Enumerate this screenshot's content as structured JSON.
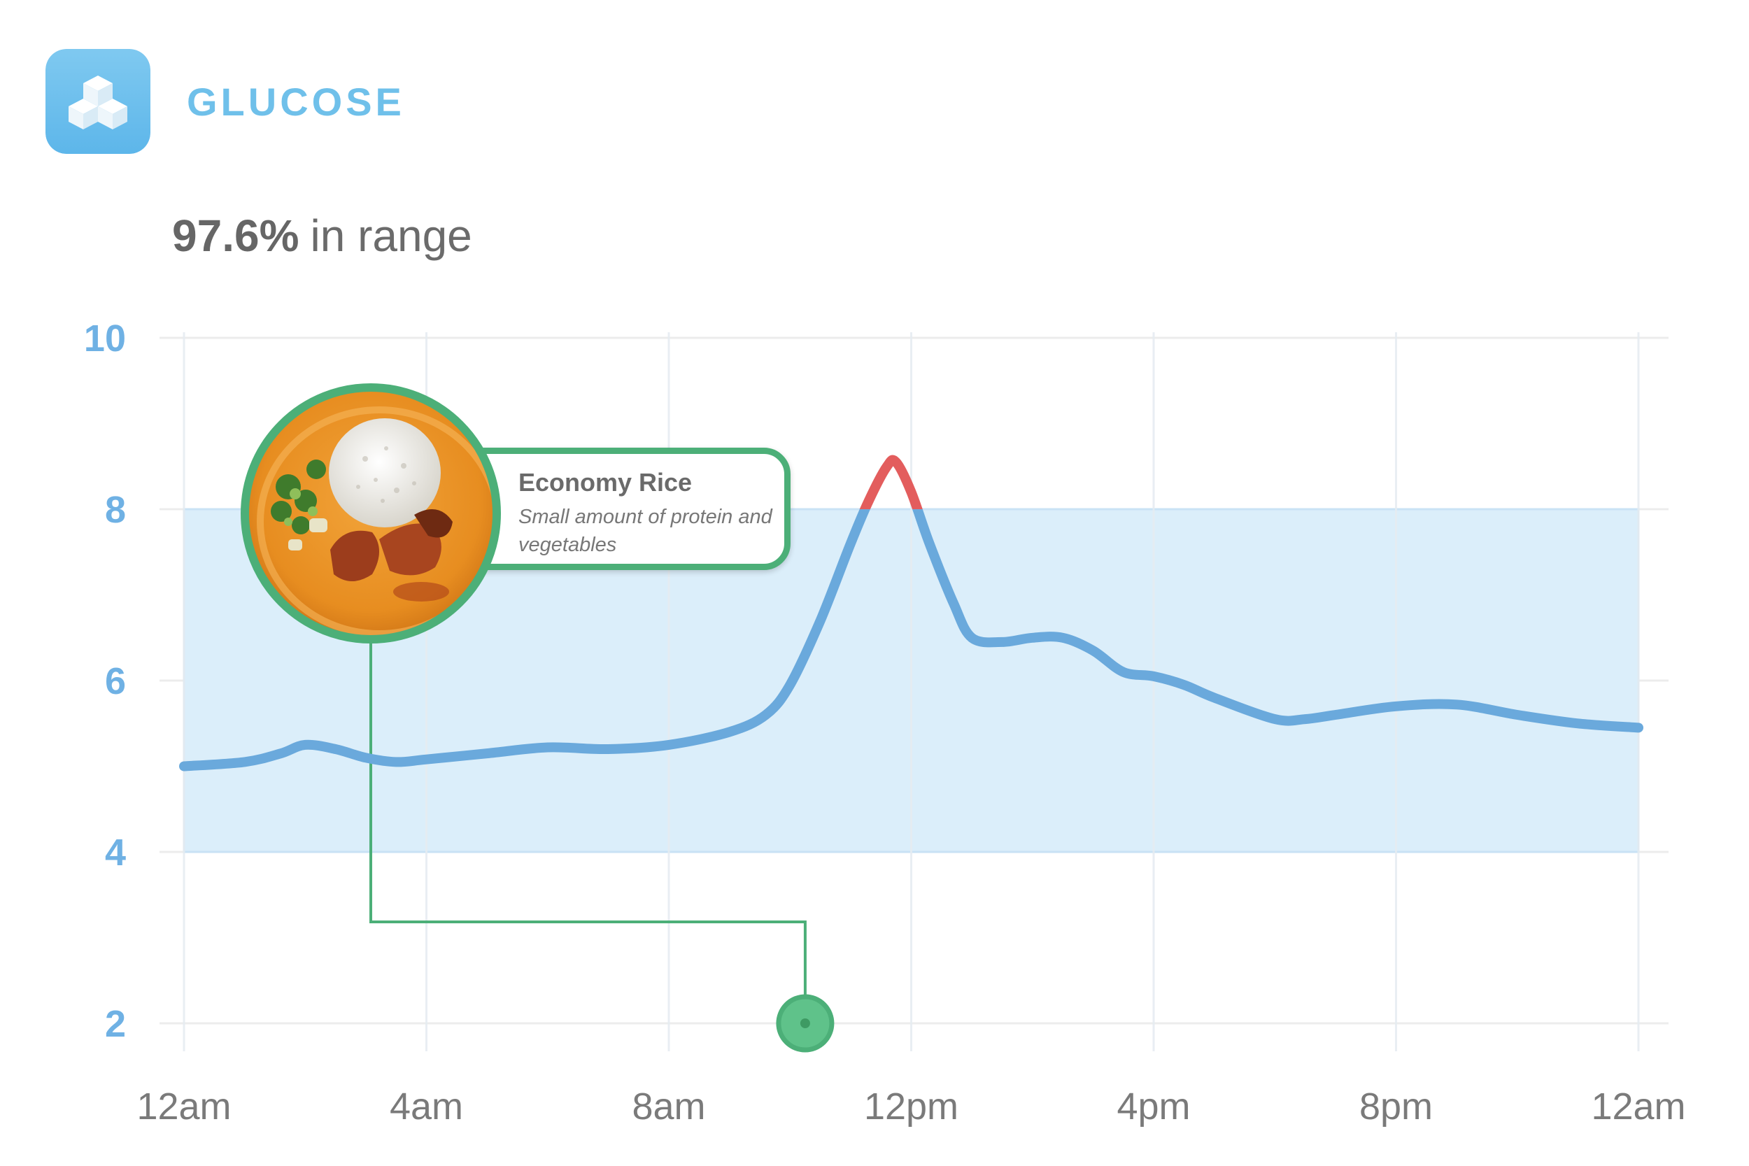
{
  "app": {
    "title": "GLUCOSE",
    "icon": "sugar-cubes-icon",
    "icon_color": "#6fc0ea"
  },
  "summary": {
    "value": "97.6%",
    "label": "in range"
  },
  "meal": {
    "title": "Economy Rice",
    "description": "Small amount of protein and vegetables",
    "photo": "rice-plate-photo",
    "time_hours": 10.25
  },
  "colors": {
    "in_range_line": "#6aa9dc",
    "high_line": "#e35d5d",
    "range_band": "#dbeefa",
    "meal_marker": "#4caf78"
  },
  "chart_data": {
    "type": "line",
    "title": "",
    "xlabel": "",
    "ylabel": "",
    "ylim": [
      2,
      10
    ],
    "xlim": [
      0,
      24
    ],
    "x_ticks": [
      0,
      4,
      8,
      12,
      16,
      20,
      24
    ],
    "x_tick_labels": [
      "12am",
      "4am",
      "8am",
      "12pm",
      "4pm",
      "8pm",
      "12am"
    ],
    "y_ticks": [
      2,
      4,
      6,
      8,
      10
    ],
    "y_tick_labels": [
      "2",
      "4",
      "6",
      "8",
      "10"
    ],
    "grid": true,
    "target_range": [
      4,
      8
    ],
    "series": [
      {
        "x": [
          0,
          1,
          1.6,
          2,
          2.5,
          3,
          3.5,
          4,
          5,
          6,
          7,
          8,
          9,
          9.6,
          10,
          10.5,
          11,
          11.3,
          11.6,
          11.75,
          12,
          12.3,
          12.7,
          13,
          13.5,
          14,
          14.5,
          15,
          15.5,
          16,
          16.5,
          17,
          18,
          18.5,
          19,
          20,
          21,
          22,
          23,
          24
        ],
        "y": [
          5.0,
          5.05,
          5.15,
          5.25,
          5.2,
          5.1,
          5.05,
          5.08,
          5.15,
          5.22,
          5.2,
          5.25,
          5.4,
          5.6,
          5.95,
          6.7,
          7.6,
          8.1,
          8.5,
          8.55,
          8.2,
          7.6,
          6.9,
          6.5,
          6.45,
          6.5,
          6.5,
          6.35,
          6.1,
          6.05,
          5.95,
          5.8,
          5.55,
          5.55,
          5.6,
          5.7,
          5.72,
          5.6,
          5.5,
          5.45
        ]
      }
    ]
  }
}
